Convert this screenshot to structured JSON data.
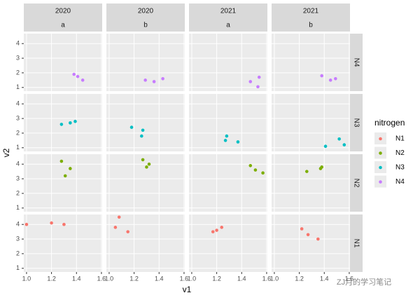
{
  "chart_data": {
    "type": "scatter",
    "x_label": "v1",
    "y_label": "v2",
    "legend_title": "nitrogen",
    "watermark": "ZJ月的学习笔记",
    "columns": [
      {
        "year": "2020",
        "group": "a"
      },
      {
        "year": "2020",
        "group": "b"
      },
      {
        "year": "2021",
        "group": "a"
      },
      {
        "year": "2021",
        "group": "b"
      }
    ],
    "xlim": [
      0.978,
      1.606
    ],
    "ylim": [
      0.75,
      4.68
    ],
    "xticks": [
      {
        "value": 1,
        "label": "1.0"
      },
      1.2,
      1.4,
      1.6
    ],
    "yticks": [
      1,
      2,
      3,
      4
    ],
    "grid": true,
    "series": [
      {
        "name": "N1",
        "color": "#F8766D",
        "facets": [
          {
            "x": [
              1.0,
              1.2,
              1.3
            ],
            "y": [
              4.0,
              4.1,
              4.0
            ]
          },
          {
            "x": [
              1.08,
              1.05,
              1.15
            ],
            "y": [
              4.5,
              3.8,
              3.5
            ]
          },
          {
            "x": [
              1.17,
              1.2,
              1.24
            ],
            "y": [
              3.5,
              3.6,
              3.8
            ]
          },
          {
            "x": [
              1.22,
              1.27,
              1.35
            ],
            "y": [
              3.7,
              3.3,
              3.0
            ]
          }
        ]
      },
      {
        "name": "N2",
        "color": "#7CAE00",
        "facets": [
          {
            "x": [
              1.28,
              1.35,
              1.31
            ],
            "y": [
              4.2,
              3.7,
              3.2
            ]
          },
          {
            "x": [
              1.27,
              1.32,
              1.3
            ],
            "y": [
              4.3,
              4.0,
              3.8
            ]
          },
          {
            "x": [
              1.47,
              1.51,
              1.57
            ],
            "y": [
              3.9,
              3.6,
              3.4
            ]
          },
          {
            "x": [
              1.26,
              1.37,
              1.38
            ],
            "y": [
              3.5,
              3.7,
              3.8
            ]
          }
        ]
      },
      {
        "name": "N3",
        "color": "#00BFC4",
        "facets": [
          {
            "x": [
              1.28,
              1.35,
              1.39
            ],
            "y": [
              2.6,
              2.7,
              2.8
            ]
          },
          {
            "x": [
              1.18,
              1.27,
              1.26
            ],
            "y": [
              2.4,
              2.2,
              1.8
            ]
          },
          {
            "x": [
              1.28,
              1.27,
              1.37
            ],
            "y": [
              1.8,
              1.5,
              1.4
            ]
          },
          {
            "x": [
              1.41,
              1.52,
              1.56
            ],
            "y": [
              1.1,
              1.6,
              1.2
            ]
          }
        ]
      },
      {
        "name": "N4",
        "color": "#C77CFF",
        "facets": [
          {
            "x": [
              1.38,
              1.41,
              1.45
            ],
            "y": [
              1.9,
              1.75,
              1.5
            ]
          },
          {
            "x": [
              1.29,
              1.36,
              1.43
            ],
            "y": [
              1.5,
              1.4,
              1.6
            ]
          },
          {
            "x": [
              1.47,
              1.54,
              1.53
            ],
            "y": [
              1.4,
              1.7,
              1.05
            ]
          },
          {
            "x": [
              1.38,
              1.45,
              1.49
            ],
            "y": [
              1.8,
              1.5,
              1.6
            ]
          }
        ]
      }
    ]
  }
}
